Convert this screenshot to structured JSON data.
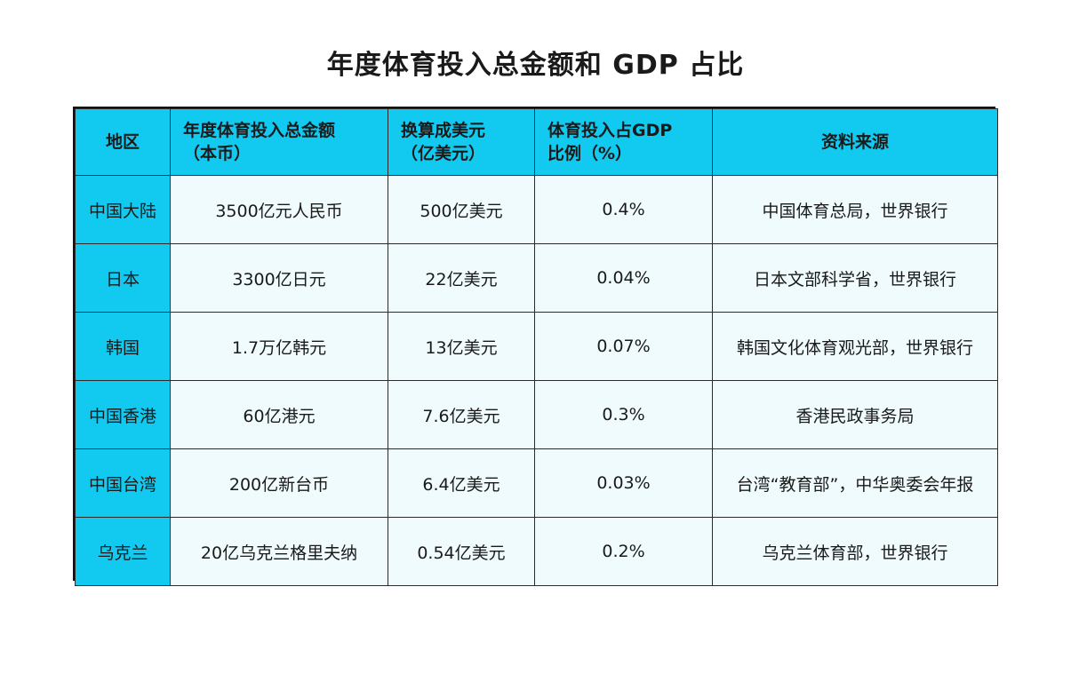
{
  "title": "年度体育投入总金额和 GDP 占比",
  "table": {
    "headers": [
      "地区",
      "年度体育投入总金额\n（本币）",
      "换算成美元\n（亿美元）",
      "体育投入占GDP\n比例（%）",
      "资料来源"
    ],
    "rows": [
      [
        "中国大陆",
        "3500亿元人民币",
        "500亿美元",
        "0.4%",
        "中国体育总局，世界银行"
      ],
      [
        "日本",
        "3300亿日元",
        "22亿美元",
        "0.04%",
        "日本文部科学省，世界银行"
      ],
      [
        "韩国",
        "1.7万亿韩元",
        "13亿美元",
        "0.07%",
        "韩国文化体育观光部，世界银行"
      ],
      [
        "中国香港",
        "60亿港元",
        "7.6亿美元",
        "0.3%",
        "香港民政事务局"
      ],
      [
        "中国台湾",
        "200亿新台币",
        "6.4亿美元",
        "0.03%",
        "台湾“教育部”，中华奥委会年报"
      ],
      [
        "乌克兰",
        "20亿乌克兰格里夫纳",
        "0.54亿美元",
        "0.2%",
        "乌克兰体育部，世界银行"
      ]
    ]
  },
  "colors": {
    "header_bg": "#12c9f0",
    "cell_bg": "#effbfd",
    "border": "#111111"
  }
}
